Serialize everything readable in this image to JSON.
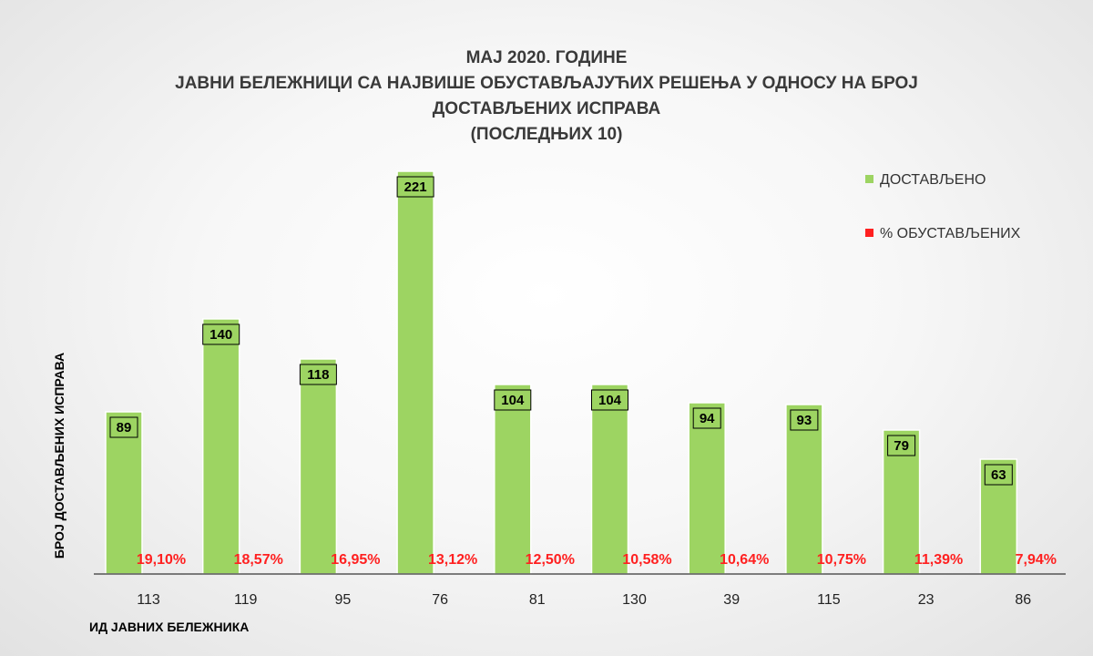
{
  "chart_data": {
    "type": "bar",
    "title_lines": [
      "МАЈ 2020. ГОДИНЕ",
      "ЈАВНИ БЕЛЕЖНИЦИ СА НАЈВИШЕ ОБУСТАВЉАЈУЋИХ РЕШЕЊА У ОДНОСУ НА БРОЈ",
      "ДОСТАВЉЕНИХ ИСПРАВА",
      "(ПОСЛЕДЊИХ 10)"
    ],
    "xlabel": "ИД ЈАВНИХ БЕЛЕЖНИКА",
    "ylabel": "БРОЈ ДОСТАВЉЕНИХ ИСПРАВА",
    "categories": [
      "113",
      "119",
      "95",
      "76",
      "81",
      "130",
      "39",
      "115",
      "23",
      "86"
    ],
    "ylim": [
      0,
      240
    ],
    "grid": false,
    "legend_position": "top-right",
    "series": [
      {
        "name": "ДОСТАВЉЕНО",
        "color": "#9dd462",
        "values": [
          89,
          140,
          118,
          221,
          104,
          104,
          94,
          93,
          79,
          63
        ],
        "labels": [
          "89",
          "140",
          "118",
          "221",
          "104",
          "104",
          "94",
          "93",
          "79",
          "63"
        ]
      },
      {
        "name": "% ОБУСТАВЉЕНИХ",
        "color": "#ff2020",
        "values": [
          19.1,
          18.57,
          16.95,
          13.12,
          12.5,
          10.58,
          10.64,
          10.75,
          11.39,
          7.94
        ],
        "labels": [
          "19,10%",
          "18,57%",
          "16,95%",
          "13,12%",
          "12,50%",
          "10,58%",
          "10,64%",
          "10,75%",
          "11,39%",
          "7,94%"
        ]
      }
    ]
  }
}
